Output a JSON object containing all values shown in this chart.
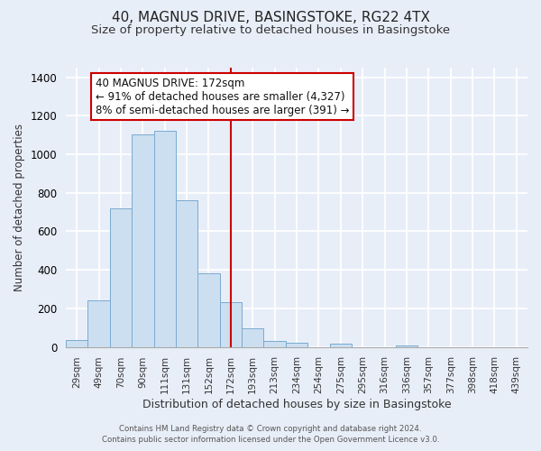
{
  "title": "40, MAGNUS DRIVE, BASINGSTOKE, RG22 4TX",
  "subtitle": "Size of property relative to detached houses in Basingstoke",
  "xlabel": "Distribution of detached houses by size in Basingstoke",
  "ylabel": "Number of detached properties",
  "categories": [
    "29sqm",
    "49sqm",
    "70sqm",
    "90sqm",
    "111sqm",
    "131sqm",
    "152sqm",
    "172sqm",
    "193sqm",
    "213sqm",
    "234sqm",
    "254sqm",
    "275sqm",
    "295sqm",
    "316sqm",
    "336sqm",
    "357sqm",
    "377sqm",
    "398sqm",
    "418sqm",
    "439sqm"
  ],
  "values": [
    35,
    240,
    720,
    1105,
    1120,
    760,
    380,
    230,
    95,
    30,
    20,
    0,
    15,
    0,
    0,
    8,
    0,
    0,
    0,
    0,
    0
  ],
  "bar_color": "#ccdff0",
  "bar_edge_color": "#7aaad0",
  "vline_x_index": 7,
  "vline_color": "#cc0000",
  "annotation_title": "40 MAGNUS DRIVE: 172sqm",
  "annotation_line1": "← 91% of detached houses are smaller (4,327)",
  "annotation_line2": "8% of semi-detached houses are larger (391) →",
  "annotation_box_color": "#ffffff",
  "annotation_box_edge_color": "#cc0000",
  "ylim": [
    0,
    1450
  ],
  "yticks": [
    0,
    200,
    400,
    600,
    800,
    1000,
    1200,
    1400
  ],
  "footer_line1": "Contains HM Land Registry data © Crown copyright and database right 2024.",
  "footer_line2": "Contains public sector information licensed under the Open Government Licence v3.0.",
  "bg_color": "#e8eef8",
  "plot_bg_color": "#e8eef8",
  "title_fontsize": 11,
  "subtitle_fontsize": 9.5,
  "grid_color": "#ffffff"
}
